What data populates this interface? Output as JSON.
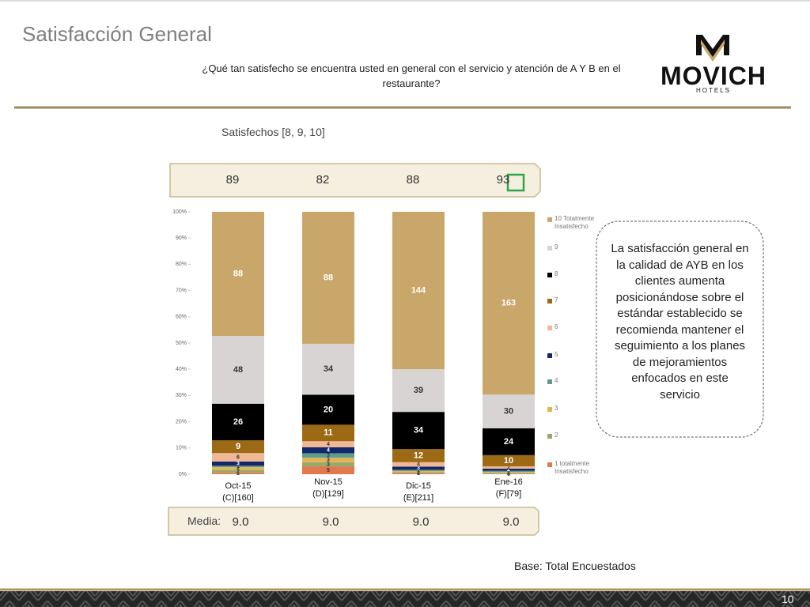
{
  "slide": {
    "title": "Satisfacción General",
    "question": "¿Qué tan satisfecho se encuentra usted en general con el servicio y atención de A Y B en el restaurante?",
    "logo": {
      "name": "MOVICH",
      "sub": "HOTELS"
    },
    "summary_label": "Satisfechos [8, 9, 10]",
    "summary_values": [
      89,
      82,
      88,
      93
    ],
    "media_label": "Media:",
    "media_values": [
      "9.0",
      "9.0",
      "9.0",
      "9.0"
    ],
    "note": "La satisfacción general en la calidad de AYB en los clientes aumenta posicionándose sobre el estándar establecido se recomienda mantener el seguimiento a los planes de mejoramientos enfocados en este servicio",
    "base": "Base: Total Encuestados",
    "page_number": "10"
  },
  "chart_data": {
    "type": "stacked_bar_percent",
    "categories": [
      "Oct-15",
      "Nov-15",
      "Dic-15",
      "Ene-16"
    ],
    "category_sublabels": [
      "(C)[160]",
      "(D)[129]",
      "(E)[211]",
      "(F)[79]"
    ],
    "ylim": [
      0,
      100
    ],
    "yticks": [
      {
        "value": 0,
        "label": "0%"
      },
      {
        "value": 10,
        "label": "10%"
      },
      {
        "value": 20,
        "label": "20%"
      },
      {
        "value": 30,
        "label": "30%"
      },
      {
        "value": 40,
        "label": "40%"
      },
      {
        "value": 50,
        "label": "50%"
      },
      {
        "value": 60,
        "label": "60%"
      },
      {
        "value": 70,
        "label": "70%"
      },
      {
        "value": 80,
        "label": "80%"
      },
      {
        "value": 90,
        "label": "90%"
      },
      {
        "value": 100,
        "label": "100%"
      }
    ],
    "legend_position": "right",
    "series": [
      {
        "name": "1 totalmente Insatisfecho",
        "color": "#e2784c",
        "values": [
          1,
          5,
          1,
          0
        ]
      },
      {
        "name": "2",
        "color": "#9aa86c",
        "values": [
          2,
          3,
          1,
          1
        ]
      },
      {
        "name": "3",
        "color": "#e3b457",
        "values": [
          2,
          3,
          1,
          1
        ]
      },
      {
        "name": "4",
        "color": "#5f9c8c",
        "values": [
          1,
          3,
          1,
          1
        ]
      },
      {
        "name": "5",
        "color": "#13286b",
        "values": [
          3,
          4,
          3,
          2
        ]
      },
      {
        "name": "6",
        "color": "#f1b896",
        "values": [
          6,
          4,
          4,
          2
        ]
      },
      {
        "name": "7",
        "color": "#9c6914",
        "values": [
          9,
          11,
          12,
          10
        ]
      },
      {
        "name": "8",
        "color": "#000000",
        "values": [
          26,
          20,
          34,
          24
        ]
      },
      {
        "name": "9",
        "color": "#d8d4d4",
        "values": [
          48,
          34,
          39,
          30
        ]
      },
      {
        "name": "10 Totalmente Insatisfecho",
        "color": "#c9a76a",
        "values": [
          88,
          88,
          144,
          163
        ]
      }
    ]
  }
}
